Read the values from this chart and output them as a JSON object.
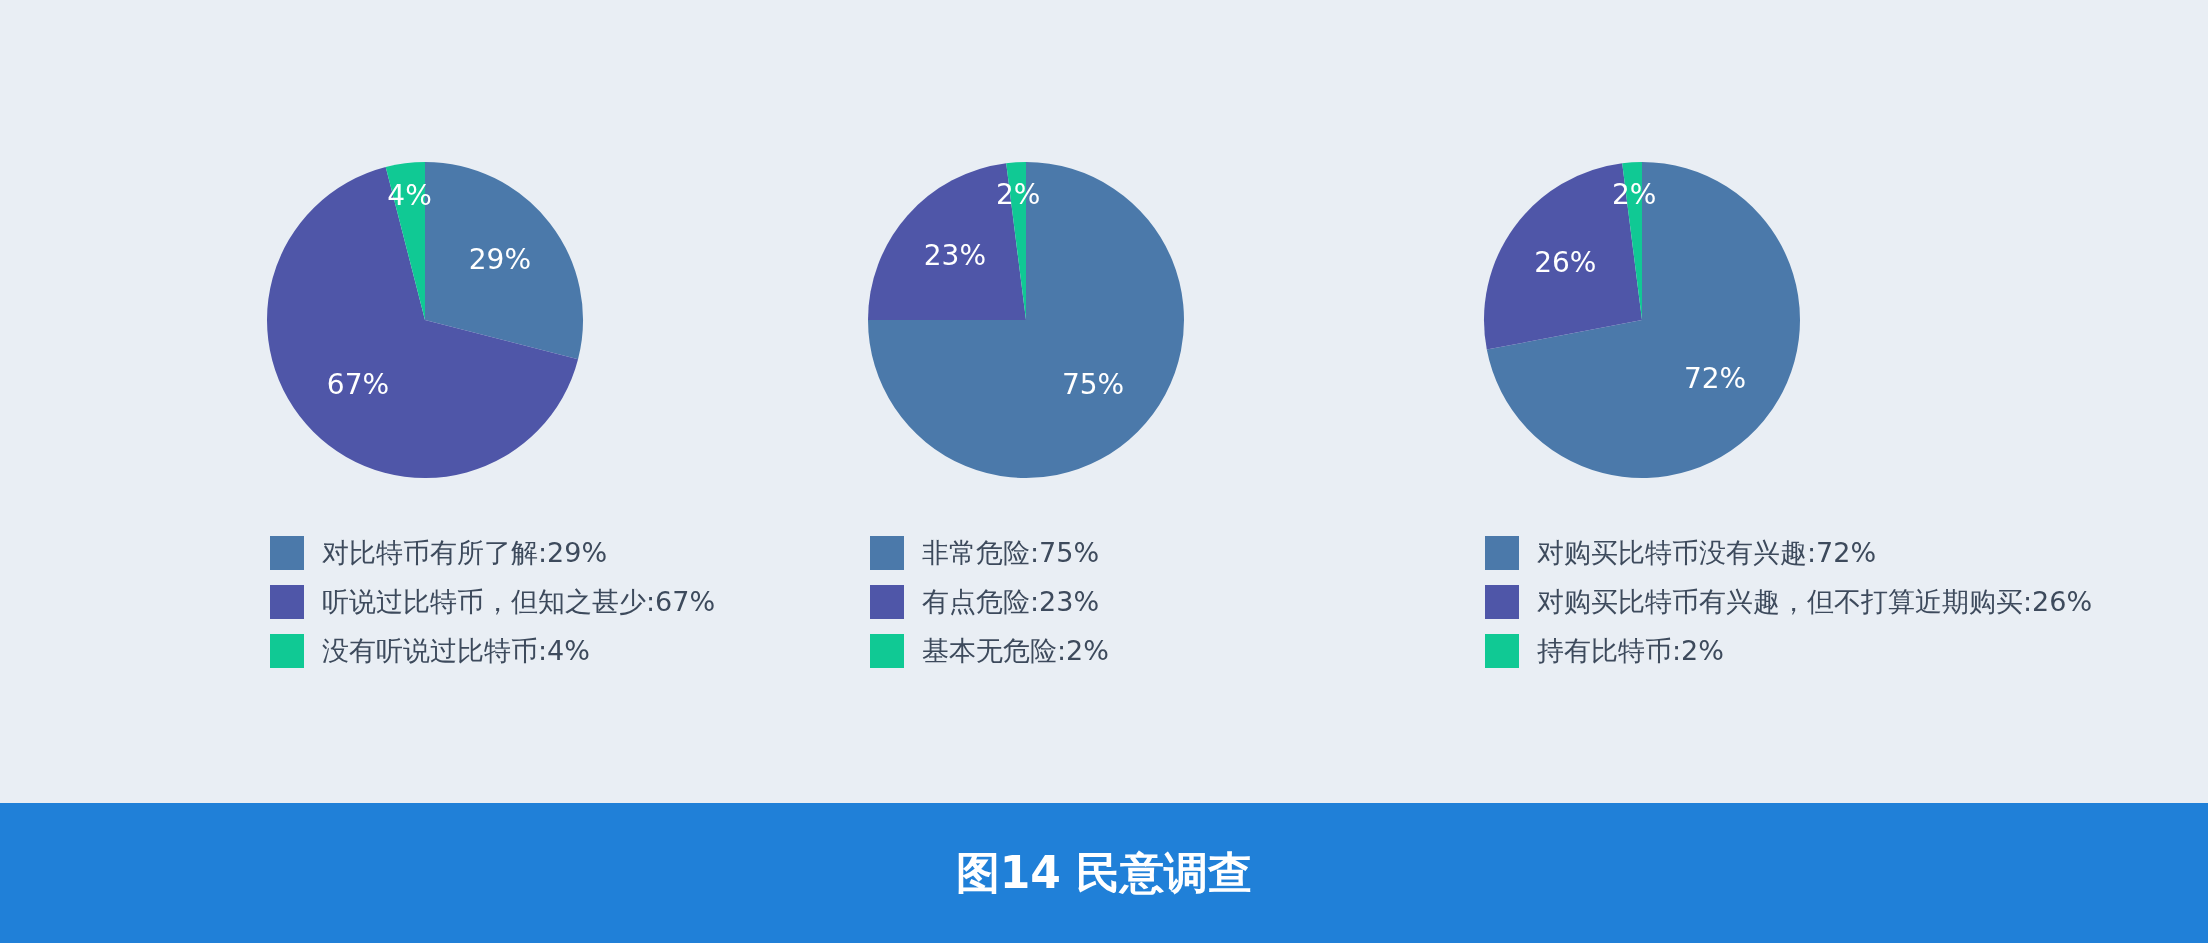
{
  "chart_data": [
    {
      "type": "pie",
      "categories": [
        "对比特币有所了解:29%",
        "听说过比特币，但知之甚少:67%",
        "没有听说过比特币:4%"
      ],
      "values": [
        29,
        67,
        4
      ],
      "value_labels": [
        "29%",
        "67%",
        "4%"
      ],
      "colors": [
        "#4b79aa",
        "#4f56a8",
        "#10c994"
      ],
      "legend": "bottom"
    },
    {
      "type": "pie",
      "categories": [
        "非常危险:75%",
        "有点危险:23%",
        "基本无危险:2%"
      ],
      "values": [
        75,
        23,
        2
      ],
      "value_labels": [
        "75%",
        "23%",
        "2%"
      ],
      "colors": [
        "#4b79aa",
        "#4f56a8",
        "#10c994"
      ],
      "legend": "bottom"
    },
    {
      "type": "pie",
      "categories": [
        "对购买比特币没有兴趣:72%",
        "对购买比特币有兴趣，但不打算近期购买:26%",
        "持有比特币:2%"
      ],
      "values": [
        72,
        26,
        2
      ],
      "value_labels": [
        "72%",
        "26%",
        "2%"
      ],
      "colors": [
        "#4b79aa",
        "#4f56a8",
        "#10c994"
      ],
      "legend": "bottom"
    },
    {
      "type": "other",
      "title": "图14 民意调查"
    }
  ]
}
